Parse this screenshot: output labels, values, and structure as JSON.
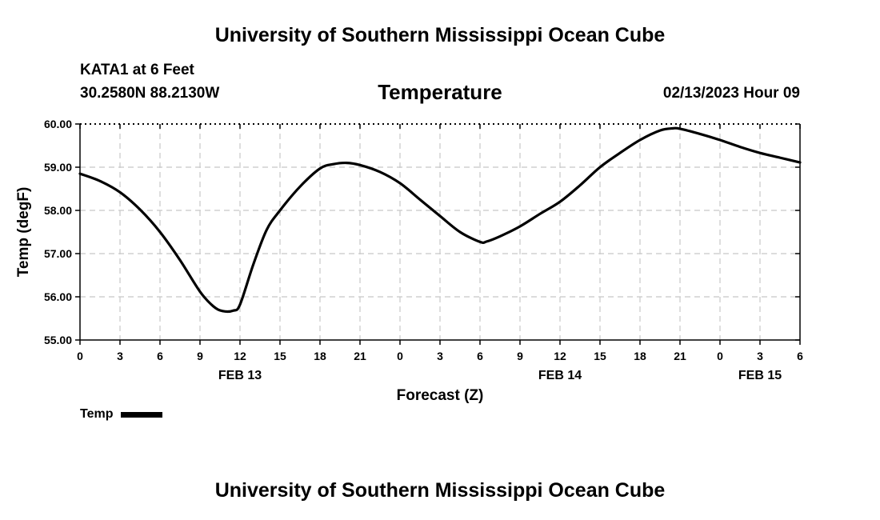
{
  "header": {
    "title": "University of Southern Mississippi Ocean Cube",
    "station": "KATA1 at 6 Feet",
    "coordinates": "30.2580N  88.2130W",
    "chart_title": "Temperature",
    "date_stamp": "02/13/2023 Hour 09"
  },
  "footer": {
    "title": "University of Southern Mississippi Ocean Cube"
  },
  "legend": {
    "label": "Temp",
    "color": "#000000"
  },
  "chart_data": {
    "type": "line",
    "title": "Temperature",
    "xlabel": "Forecast (Z)",
    "ylabel": "Temp (degF)",
    "xlim": [
      0,
      54
    ],
    "ylim": [
      55.0,
      60.0
    ],
    "y_ticks": [
      "55.00",
      "56.00",
      "57.00",
      "58.00",
      "59.00",
      "60.00"
    ],
    "x_ticks": [
      {
        "x": 0,
        "label": "0"
      },
      {
        "x": 3,
        "label": "3"
      },
      {
        "x": 6,
        "label": "6"
      },
      {
        "x": 9,
        "label": "9"
      },
      {
        "x": 12,
        "label": "12"
      },
      {
        "x": 15,
        "label": "15"
      },
      {
        "x": 18,
        "label": "18"
      },
      {
        "x": 21,
        "label": "21"
      },
      {
        "x": 24,
        "label": "0"
      },
      {
        "x": 27,
        "label": "3"
      },
      {
        "x": 30,
        "label": "6"
      },
      {
        "x": 33,
        "label": "9"
      },
      {
        "x": 36,
        "label": "12"
      },
      {
        "x": 39,
        "label": "15"
      },
      {
        "x": 42,
        "label": "18"
      },
      {
        "x": 45,
        "label": "21"
      },
      {
        "x": 48,
        "label": "0"
      },
      {
        "x": 51,
        "label": "3"
      },
      {
        "x": 54,
        "label": "6"
      }
    ],
    "day_labels": [
      {
        "x": 12,
        "label": "FEB 13"
      },
      {
        "x": 36,
        "label": "FEB 14"
      },
      {
        "x": 51,
        "label": "FEB 15"
      }
    ],
    "grid": true,
    "series": [
      {
        "name": "Temp",
        "color": "#000000",
        "x": [
          0,
          1.5,
          3,
          4.5,
          6,
          7.5,
          9,
          10,
          10.7,
          11.5,
          12,
          13,
          14,
          15,
          16.5,
          18,
          19,
          20,
          21,
          22.5,
          24,
          25.5,
          27,
          28.5,
          30,
          30.5,
          31.5,
          33,
          34.5,
          36,
          37.5,
          39,
          40.5,
          42,
          43.5,
          44.5,
          45,
          46.5,
          48,
          49.5,
          51,
          52.5,
          54
        ],
        "values": [
          58.85,
          58.68,
          58.42,
          58.02,
          57.5,
          56.85,
          56.12,
          55.78,
          55.67,
          55.68,
          55.82,
          56.75,
          57.55,
          58.0,
          58.55,
          58.97,
          59.07,
          59.1,
          59.05,
          58.89,
          58.63,
          58.25,
          57.87,
          57.5,
          57.27,
          57.28,
          57.4,
          57.63,
          57.92,
          58.2,
          58.58,
          59.0,
          59.33,
          59.63,
          59.85,
          59.9,
          59.89,
          59.77,
          59.63,
          59.47,
          59.33,
          59.22,
          59.11
        ]
      }
    ]
  }
}
